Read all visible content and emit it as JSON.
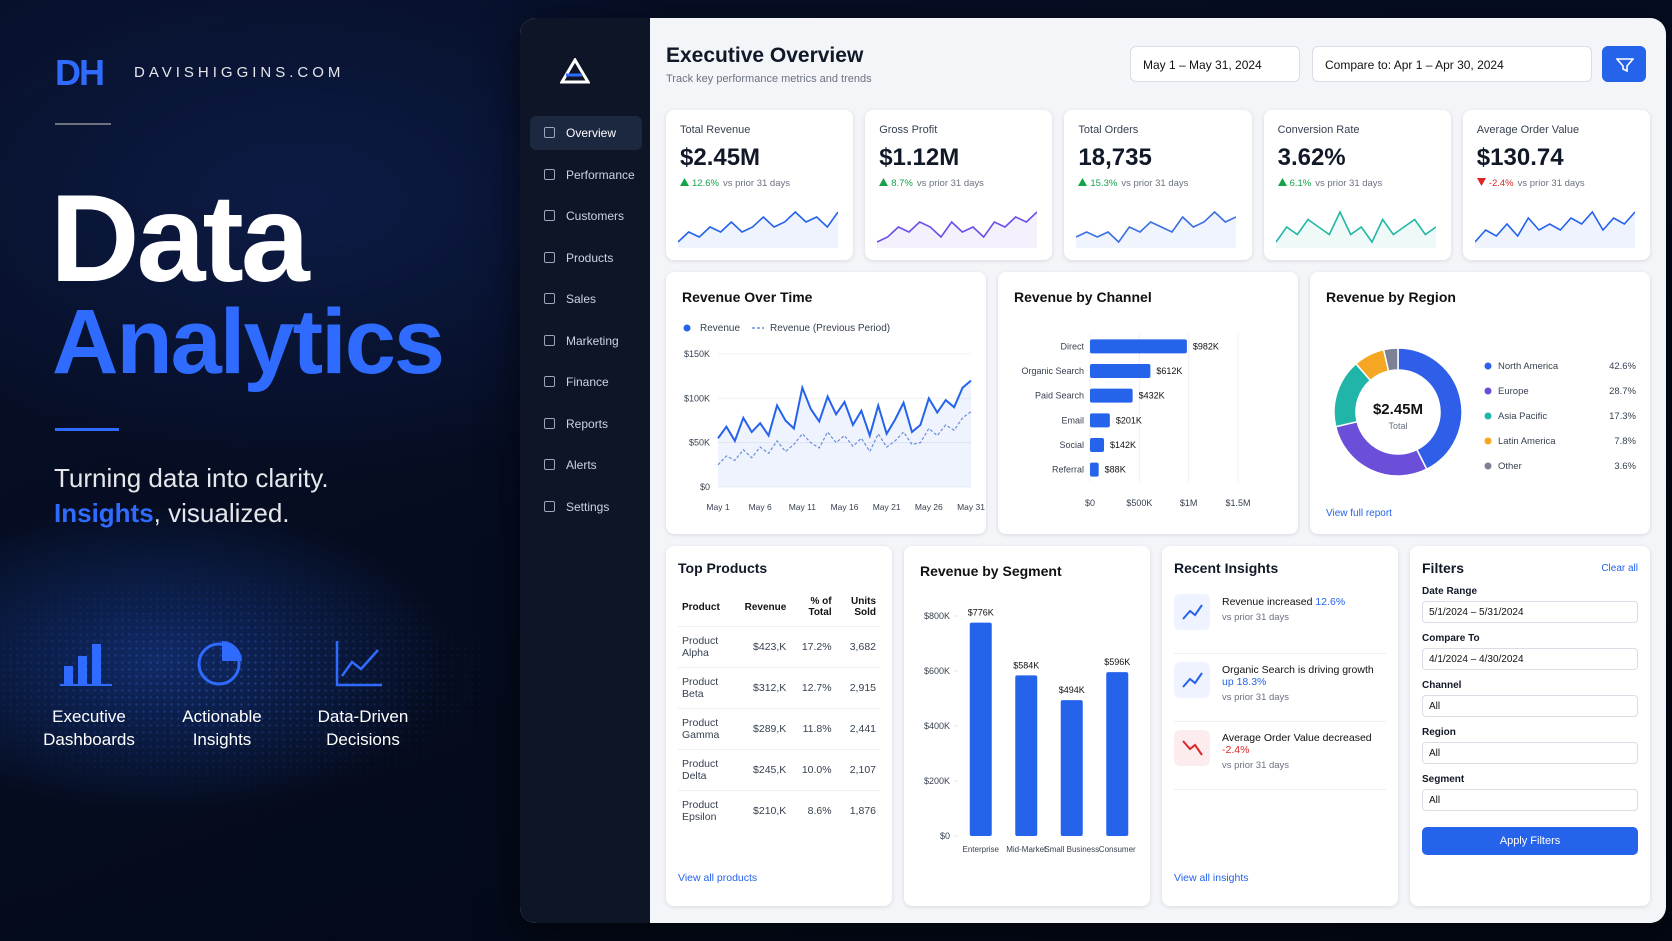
{
  "brand": {
    "logo": "DH",
    "site": "DAVISHIGGINS.COM"
  },
  "hero": {
    "title_line1": "Data",
    "title_line2": "Analytics",
    "tagline": "Turning data into clarity.",
    "tagline2_em": "Insights",
    "tagline2_rest": ", visualized."
  },
  "features": [
    {
      "label": "Executive Dashboards"
    },
    {
      "label": "Actionable Insights"
    },
    {
      "label": "Data-Driven Decisions"
    }
  ],
  "sidebar": {
    "nav": [
      "Overview",
      "Performance",
      "Customers",
      "Products",
      "Sales",
      "Marketing",
      "Finance",
      "Reports",
      "Alerts",
      "Settings"
    ]
  },
  "header": {
    "title": "Executive Overview",
    "subtitle": "Track key performance metrics and trends",
    "date_range": "May 1 – May 31, 2024",
    "compare": "Compare to: Apr 1 – Apr 30, 2024"
  },
  "kpis": [
    {
      "label": "Total Revenue",
      "value": "$2.45M",
      "change": "12.6%",
      "note": "vs prior 31 days",
      "trend": "up",
      "color": "#2563eb",
      "sparkline": [
        5,
        7,
        6,
        8,
        7,
        9,
        7,
        8,
        10,
        8,
        9,
        11,
        9,
        10,
        8,
        11
      ]
    },
    {
      "label": "Gross Profit",
      "value": "$1.12M",
      "change": "8.7%",
      "note": "vs prior 31 days",
      "trend": "up",
      "color": "#6d4ee8",
      "sparkline": [
        5,
        6,
        8,
        7,
        9,
        8,
        6,
        9,
        7,
        8,
        6,
        9,
        8,
        10,
        9,
        11
      ]
    },
    {
      "label": "Total Orders",
      "value": "18,735",
      "change": "15.3%",
      "note": "vs prior 31 days",
      "trend": "up",
      "color": "#3b6fe0",
      "sparkline": [
        6,
        7,
        6,
        7,
        5,
        8,
        7,
        9,
        8,
        7,
        10,
        8,
        9,
        11,
        9,
        10
      ]
    },
    {
      "label": "Conversion Rate",
      "value": "3.62%",
      "change": "6.1%",
      "note": "vs prior 31 days",
      "trend": "up",
      "color": "#22b8a6",
      "sparkline": [
        7,
        9,
        8,
        10,
        9,
        8,
        11,
        8,
        9,
        7,
        10,
        8,
        9,
        10,
        8,
        9
      ]
    },
    {
      "label": "Average Order Value",
      "value": "$130.74",
      "change": "-2.4%",
      "note": "vs prior 31 days",
      "trend": "down",
      "color": "#2563eb",
      "sparkline": [
        6,
        8,
        7,
        9,
        7,
        10,
        8,
        9,
        8,
        10,
        9,
        11,
        8,
        10,
        9,
        11
      ]
    }
  ],
  "chart_data": [
    {
      "type": "line",
      "title": "Revenue Over Time",
      "categories": [
        "May 1",
        null,
        null,
        null,
        null,
        "May 6",
        null,
        null,
        null,
        null,
        "May 11",
        null,
        null,
        null,
        null,
        "May 16",
        null,
        null,
        null,
        null,
        "May 21",
        null,
        null,
        null,
        null,
        "May 26",
        null,
        null,
        null,
        null,
        "May 31"
      ],
      "series": [
        {
          "name": "Revenue",
          "color": "#2563eb",
          "style": "solid",
          "values": [
            55000,
            68000,
            52000,
            78000,
            62000,
            72000,
            58000,
            92000,
            75000,
            66000,
            112000,
            88000,
            74000,
            102000,
            82000,
            96000,
            70000,
            86000,
            58000,
            92000,
            60000,
            76000,
            95000,
            62000,
            70000,
            100000,
            84000,
            98000,
            90000,
            112000,
            120000
          ]
        },
        {
          "name": "Revenue (Previous Period)",
          "color": "#6b8fd6",
          "style": "dashed",
          "values": [
            25000,
            35000,
            30000,
            42000,
            33000,
            45000,
            38000,
            52000,
            40000,
            48000,
            60000,
            50000,
            44000,
            62000,
            50000,
            58000,
            46000,
            55000,
            40000,
            60000,
            45000,
            52000,
            62000,
            48000,
            50000,
            66000,
            58000,
            70000,
            64000,
            78000,
            85000
          ]
        }
      ],
      "ylim": [
        0,
        150000
      ],
      "yticks": [
        {
          "value": 0,
          "label": "$0"
        },
        {
          "value": 50000,
          "label": "$50K"
        },
        {
          "value": 100000,
          "label": "$100K"
        },
        {
          "value": 150000,
          "label": "$150K"
        }
      ],
      "grid": true
    },
    {
      "type": "hbar",
      "title": "Revenue by Channel",
      "categories": [
        "Direct",
        "Organic Search",
        "Paid Search",
        "Email",
        "Social",
        "Referral"
      ],
      "values": [
        982000,
        612000,
        432000,
        201000,
        142000,
        88000
      ],
      "value_labels": [
        "$982K",
        "$612K",
        "$432K",
        "$201K",
        "$142K",
        "$88K"
      ],
      "color": "#2563eb",
      "xlim": [
        0,
        1500000
      ],
      "xticks": [
        {
          "value": 0,
          "label": "$0"
        },
        {
          "value": 500000,
          "label": "$500K"
        },
        {
          "value": 1000000,
          "label": "$1M"
        },
        {
          "value": 1500000,
          "label": "$1.5M"
        }
      ],
      "grid": true
    },
    {
      "type": "donut",
      "title": "Revenue by Region",
      "center_value": "$2.45M",
      "center_label": "Total",
      "link": "View full report",
      "categories": [
        "North America",
        "Europe",
        "Asia Pacific",
        "Latin America",
        "Other"
      ],
      "values": [
        42.6,
        28.7,
        17.3,
        7.8,
        3.6
      ],
      "value_labels": [
        "42.6%",
        "28.7%",
        "17.3%",
        "7.8%",
        "3.6%"
      ],
      "colors": [
        "#2f5ee8",
        "#6b4fd8",
        "#20b5a8",
        "#f5a623",
        "#7b8294"
      ]
    },
    {
      "type": "bar",
      "title": "Revenue by Segment",
      "categories": [
        "Enterprise",
        "Mid-Market",
        "Small Business",
        "Consumer"
      ],
      "values": [
        776000,
        584000,
        494000,
        596000
      ],
      "value_labels": [
        "$776K",
        "$584K",
        "$494K",
        "$596K"
      ],
      "color": "#2563eb",
      "ylim": [
        0,
        800000
      ],
      "yticks": [
        {
          "value": 0,
          "label": "$0"
        },
        {
          "value": 200000,
          "label": "$200K"
        },
        {
          "value": 400000,
          "label": "$400K"
        },
        {
          "value": 600000,
          "label": "$600K"
        },
        {
          "value": 800000,
          "label": "$800K"
        }
      ],
      "grid": false
    }
  ],
  "top_products": {
    "title": "Top Products",
    "columns": [
      "Product",
      "Revenue",
      "% of Total",
      "Units Sold"
    ],
    "rows": [
      [
        "Product Alpha",
        "$423,K",
        "17.2%",
        "3,682"
      ],
      [
        "Product Beta",
        "$312,K",
        "12.7%",
        "2,915"
      ],
      [
        "Product Gamma",
        "$289,K",
        "11.8%",
        "2,441"
      ],
      [
        "Product Delta",
        "$245,K",
        "10.0%",
        "2,107"
      ],
      [
        "Product Epsilon",
        "$210,K",
        "8.6%",
        "1,876"
      ]
    ],
    "link": "View all products"
  },
  "insights": {
    "title": "Recent Insights",
    "items": [
      {
        "text": "Revenue increased",
        "highlight": "12.6%",
        "note": "vs prior 31 days",
        "tone": "up"
      },
      {
        "text": "Organic Search is driving growth",
        "highlight": "up 18.3%",
        "note": "vs prior 31 days",
        "tone": "up"
      },
      {
        "text": "Average Order Value decreased",
        "highlight": "-2.4%",
        "note": "vs prior 31 days",
        "tone": "down"
      }
    ],
    "link": "View all insights"
  },
  "filters": {
    "title": "Filters",
    "clear": "Clear all",
    "fields": [
      {
        "label": "Date Range",
        "value": "5/1/2024 – 5/31/2024"
      },
      {
        "label": "Compare To",
        "value": "4/1/2024 – 4/30/2024"
      },
      {
        "label": "Channel",
        "value": "All"
      },
      {
        "label": "Region",
        "value": "All"
      },
      {
        "label": "Segment",
        "value": "All"
      }
    ],
    "button": "Apply Filters"
  }
}
